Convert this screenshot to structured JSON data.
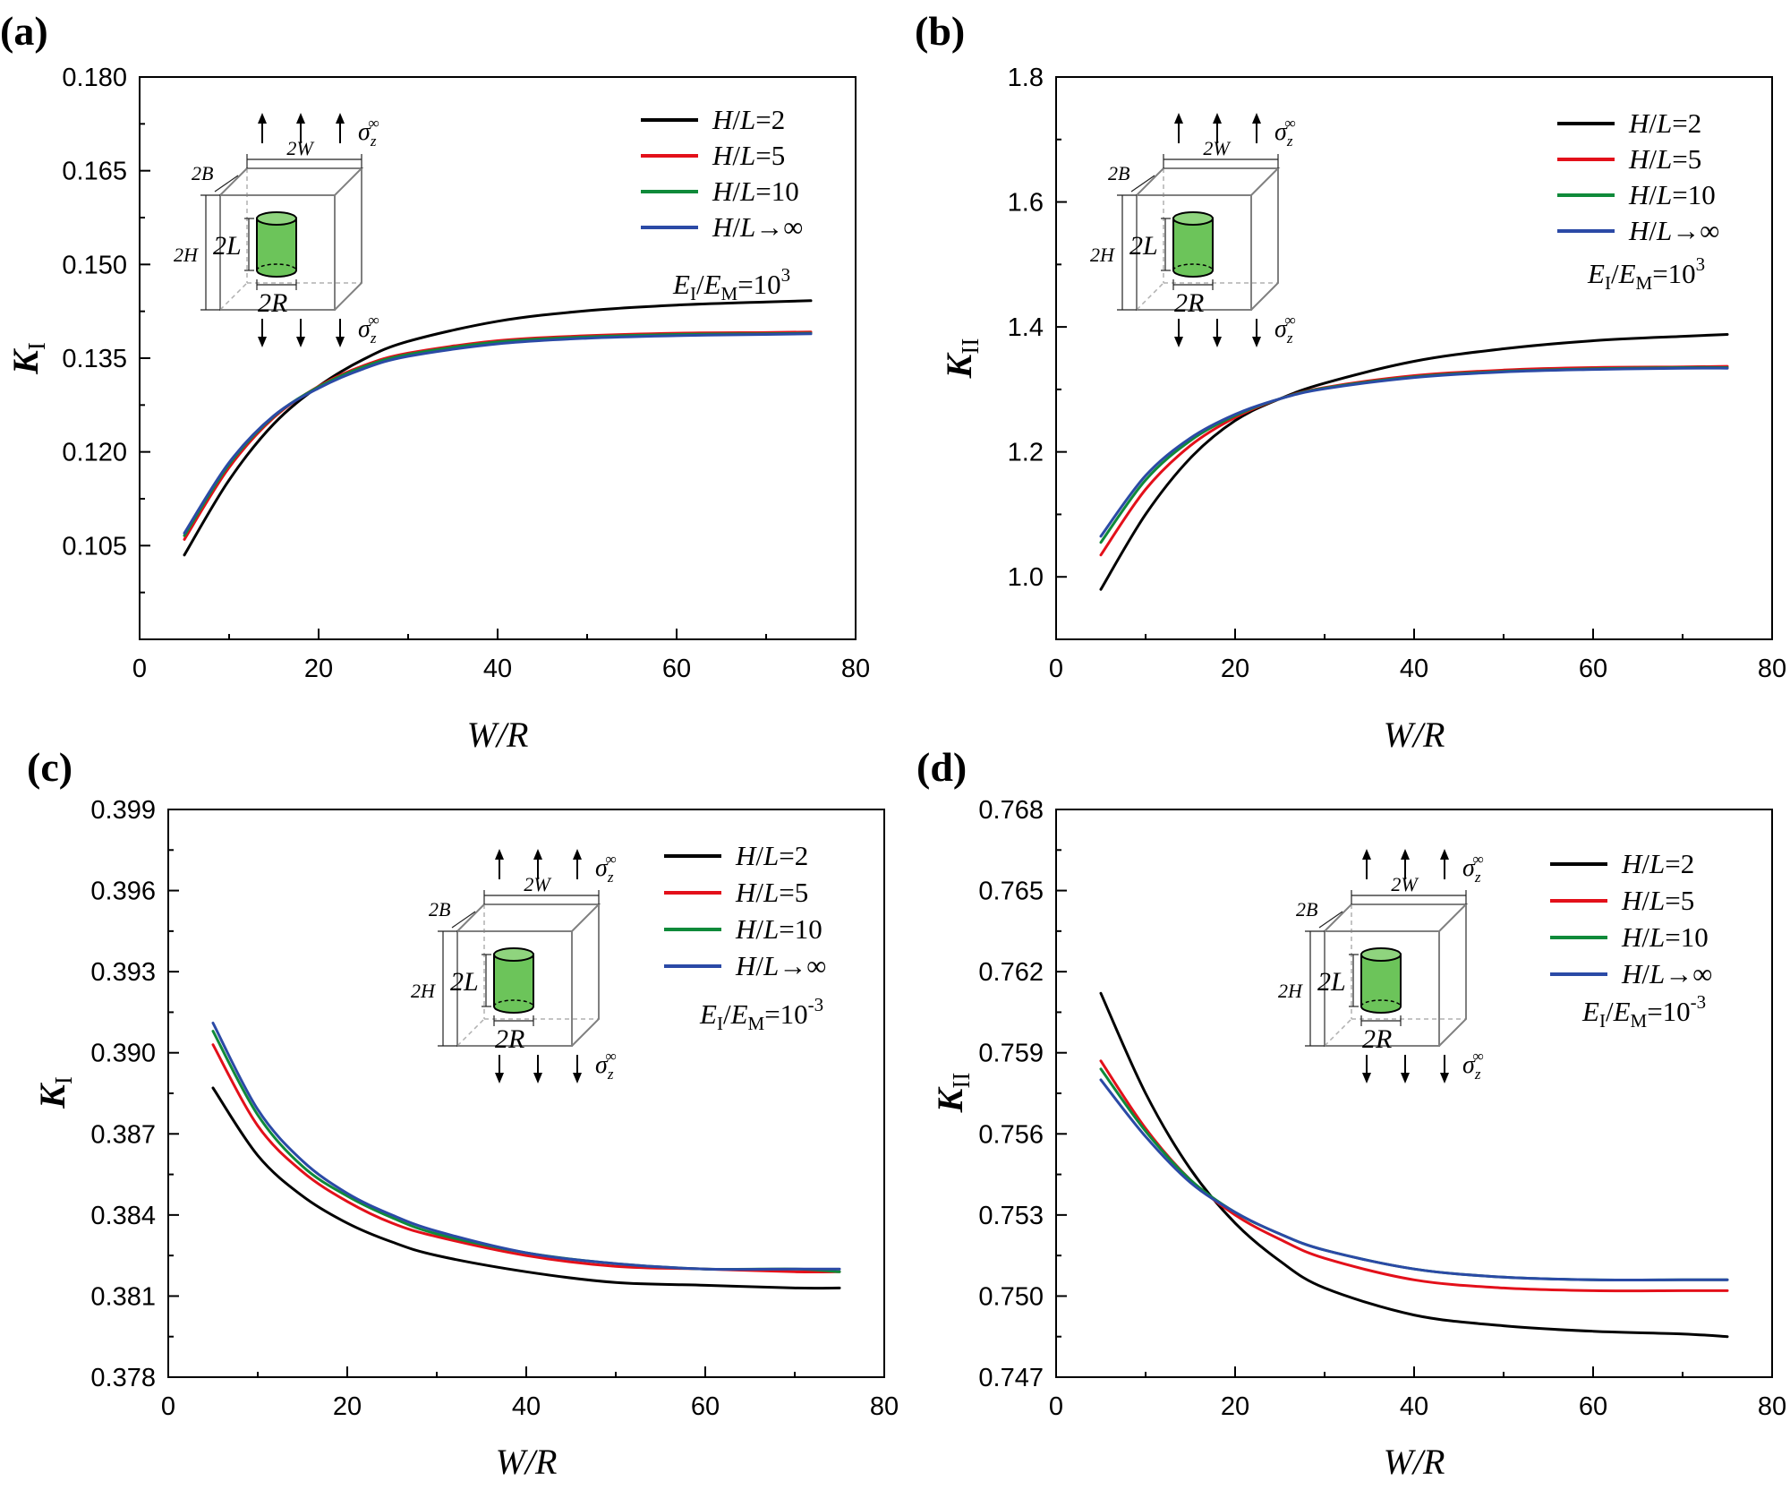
{
  "figure": {
    "legend_labels": [
      "H/L=2",
      "H/L=5",
      "H/L=10",
      "H/L→∞"
    ],
    "legend_parts": [
      {
        "var": "H",
        "sep": "/",
        "var2": "L",
        "tail": "=2"
      },
      {
        "var": "H",
        "sep": "/",
        "var2": "L",
        "tail": "=5"
      },
      {
        "var": "H",
        "sep": "/",
        "var2": "L",
        "tail": "=10"
      },
      {
        "var": "H",
        "sep": "/",
        "var2": "L",
        "tail": "→∞"
      }
    ],
    "series_colors": [
      "#000000",
      "#e3101a",
      "#0f8a3a",
      "#2b4aa6"
    ],
    "inset": {
      "sigma_label": "σ",
      "sigma_sub": "z",
      "sigma_sup": "∞",
      "width_label": "2W",
      "depth_label": "2B",
      "height_label": "2H",
      "length_label": "2L",
      "radius_label": "2R",
      "inclusion_color": "#6cc45a"
    }
  },
  "chart_data": [
    {
      "panel": "(a)",
      "type": "line",
      "xlabel": "W/R",
      "ylabel": "K",
      "ylabel_sub": "I",
      "xlim": [
        0,
        80
      ],
      "ylim": [
        0.09,
        0.18
      ],
      "xticks": [
        "0",
        "20",
        "40",
        "60",
        "80"
      ],
      "yticks": [
        "0.105",
        "0.120",
        "0.135",
        "0.150",
        "0.165",
        "0.180"
      ],
      "ratio_label": {
        "e1": "E",
        "s1": "I",
        "slash": "/",
        "e2": "E",
        "s2": "M",
        "eq": "=10",
        "exp": "3"
      },
      "x": [
        5,
        10,
        15,
        20,
        25,
        30,
        40,
        50,
        60,
        70,
        75
      ],
      "series": [
        {
          "name": "H/L=2",
          "values": [
            0.1035,
            0.1155,
            0.1245,
            0.1305,
            0.1348,
            0.1377,
            0.1409,
            0.1426,
            0.1435,
            0.144,
            0.1442
          ]
        },
        {
          "name": "H/L=5",
          "values": [
            0.106,
            0.1175,
            0.1255,
            0.1305,
            0.1338,
            0.1358,
            0.1378,
            0.1386,
            0.139,
            0.1391,
            0.1392
          ]
        },
        {
          "name": "H/L=10",
          "values": [
            0.1066,
            0.118,
            0.1257,
            0.1304,
            0.1336,
            0.1356,
            0.1376,
            0.1384,
            0.1388,
            0.1389,
            0.139
          ]
        },
        {
          "name": "H/L→∞",
          "values": [
            0.107,
            0.1183,
            0.1258,
            0.1302,
            0.1333,
            0.1353,
            0.1373,
            0.1382,
            0.1386,
            0.1388,
            0.1389
          ]
        }
      ]
    },
    {
      "panel": "(b)",
      "type": "line",
      "xlabel": "W/R",
      "ylabel": "K",
      "ylabel_sub": "II",
      "xlim": [
        0,
        80
      ],
      "ylim": [
        0.9,
        1.8
      ],
      "xticks": [
        "0",
        "20",
        "40",
        "60",
        "80"
      ],
      "yticks": [
        "1.0",
        "1.2",
        "1.4",
        "1.6",
        "1.8"
      ],
      "ratio_label": {
        "e1": "E",
        "s1": "I",
        "slash": "/",
        "e2": "E",
        "s2": "M",
        "eq": "=10",
        "exp": "3"
      },
      "x": [
        5,
        10,
        15,
        20,
        25,
        30,
        40,
        50,
        60,
        70,
        75
      ],
      "series": [
        {
          "name": "H/L=2",
          "values": [
            0.98,
            1.1,
            1.19,
            1.25,
            1.285,
            1.31,
            1.345,
            1.365,
            1.378,
            1.385,
            1.388
          ]
        },
        {
          "name": "H/L=5",
          "values": [
            1.035,
            1.14,
            1.21,
            1.255,
            1.285,
            1.303,
            1.322,
            1.331,
            1.335,
            1.336,
            1.337
          ]
        },
        {
          "name": "H/L=10",
          "values": [
            1.055,
            1.155,
            1.218,
            1.258,
            1.285,
            1.302,
            1.32,
            1.329,
            1.333,
            1.335,
            1.335
          ]
        },
        {
          "name": "H/L→∞",
          "values": [
            1.065,
            1.162,
            1.222,
            1.26,
            1.285,
            1.301,
            1.319,
            1.328,
            1.332,
            1.334,
            1.334
          ]
        }
      ]
    },
    {
      "panel": "(c)",
      "type": "line",
      "xlabel": "W/R",
      "ylabel": "K",
      "ylabel_sub": "I",
      "xlim": [
        0,
        80
      ],
      "ylim": [
        0.378,
        0.399
      ],
      "xticks": [
        "0",
        "20",
        "40",
        "60",
        "80"
      ],
      "yticks": [
        "0.378",
        "0.381",
        "0.384",
        "0.387",
        "0.390",
        "0.393",
        "0.396",
        "0.399"
      ],
      "ratio_label": {
        "e1": "E",
        "s1": "I",
        "slash": "/",
        "e2": "E",
        "s2": "M",
        "eq": "=10",
        "exp": "-3"
      },
      "x": [
        5,
        10,
        15,
        20,
        25,
        30,
        40,
        50,
        60,
        70,
        75
      ],
      "series": [
        {
          "name": "H/L=2",
          "values": [
            0.3887,
            0.3862,
            0.3847,
            0.3837,
            0.383,
            0.3825,
            0.3819,
            0.3815,
            0.3814,
            0.3813,
            0.3813
          ]
        },
        {
          "name": "H/L=5",
          "values": [
            0.3903,
            0.3873,
            0.3856,
            0.3845,
            0.3837,
            0.3832,
            0.3825,
            0.3821,
            0.382,
            0.3819,
            0.3819
          ]
        },
        {
          "name": "H/L=10",
          "values": [
            0.3908,
            0.3877,
            0.3858,
            0.3847,
            0.3839,
            0.3833,
            0.3826,
            0.3822,
            0.382,
            0.382,
            0.3819
          ]
        },
        {
          "name": "H/L→∞",
          "values": [
            0.3911,
            0.3879,
            0.386,
            0.3848,
            0.384,
            0.3834,
            0.3826,
            0.3822,
            0.382,
            0.382,
            0.382
          ]
        }
      ]
    },
    {
      "panel": "(d)",
      "type": "line",
      "xlabel": "W/R",
      "ylabel": "K",
      "ylabel_sub": "II",
      "xlim": [
        0,
        80
      ],
      "ylim": [
        0.747,
        0.768
      ],
      "xticks": [
        "0",
        "20",
        "40",
        "60",
        "80"
      ],
      "yticks": [
        "0.747",
        "0.750",
        "0.753",
        "0.756",
        "0.759",
        "0.762",
        "0.765",
        "0.768"
      ],
      "ratio_label": {
        "e1": "E",
        "s1": "I",
        "slash": "/",
        "e2": "E",
        "s2": "M",
        "eq": "=10",
        "exp": "-3"
      },
      "x": [
        5,
        10,
        15,
        20,
        25,
        30,
        40,
        50,
        60,
        70,
        75
      ],
      "series": [
        {
          "name": "H/L=2",
          "values": [
            0.7612,
            0.7575,
            0.7547,
            0.7527,
            0.7513,
            0.7503,
            0.7493,
            0.7489,
            0.7487,
            0.7486,
            0.7485
          ]
        },
        {
          "name": "H/L=5",
          "values": [
            0.7587,
            0.7562,
            0.7543,
            0.753,
            0.7521,
            0.7514,
            0.7506,
            0.7503,
            0.7502,
            0.7502,
            0.7502
          ]
        },
        {
          "name": "H/L=10",
          "values": [
            0.7584,
            0.7561,
            0.7543,
            0.7531,
            0.7523,
            0.7517,
            0.751,
            0.7507,
            0.7506,
            0.7506,
            0.7506
          ]
        },
        {
          "name": "H/L→∞",
          "values": [
            0.758,
            0.7559,
            0.7542,
            0.7531,
            0.7523,
            0.7517,
            0.751,
            0.7507,
            0.7506,
            0.7506,
            0.7506
          ]
        }
      ]
    }
  ]
}
